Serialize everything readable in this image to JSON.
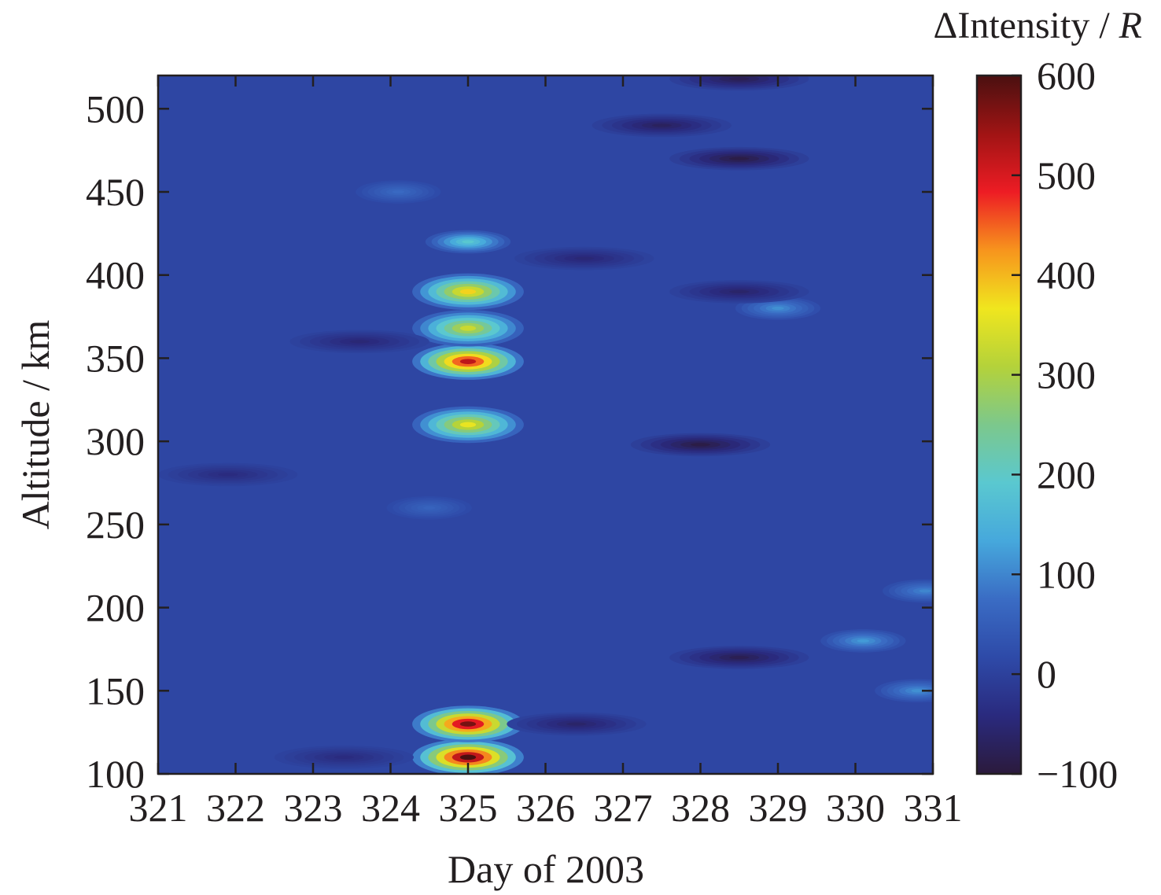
{
  "chart_data": {
    "type": "heatmap",
    "title": "",
    "xlabel": "Day of 2003",
    "ylabel": "Altitude / km",
    "colorbar_label": "ΔIntensity / ",
    "colorbar_label_italic": "R",
    "xlim": [
      321,
      331
    ],
    "ylim": [
      100,
      520
    ],
    "clim": [
      -100,
      600
    ],
    "x_ticks": [
      321,
      322,
      323,
      324,
      325,
      326,
      327,
      328,
      329,
      330,
      331
    ],
    "x_tick_labels": [
      "321",
      "322",
      "323",
      "324",
      "325",
      "326",
      "327",
      "328",
      "329",
      "330",
      "331"
    ],
    "y_ticks": [
      100,
      150,
      200,
      250,
      300,
      350,
      400,
      450,
      500
    ],
    "y_tick_labels": [
      "100",
      "150",
      "200",
      "250",
      "300",
      "350",
      "400",
      "450",
      "500"
    ],
    "colorbar_ticks": [
      -100,
      0,
      100,
      200,
      300,
      400,
      500,
      600
    ],
    "colorbar_tick_labels": [
      "−100",
      "0",
      "100",
      "200",
      "300",
      "400",
      "500",
      "600"
    ],
    "colormap": [
      "#2b1a3c",
      "#2a2a7e",
      "#2e4aa8",
      "#3a6cc4",
      "#46a8dc",
      "#5ac8d0",
      "#7cc88c",
      "#b4d23a",
      "#f0e61e",
      "#f7941d",
      "#ed1c24",
      "#a01414",
      "#4a1010"
    ],
    "background_value": 10,
    "features": [
      {
        "day": 325.0,
        "altitude": 110,
        "value": 600
      },
      {
        "day": 325.0,
        "altitude": 130,
        "value": 570
      },
      {
        "day": 325.0,
        "altitude": 310,
        "value": 360
      },
      {
        "day": 325.0,
        "altitude": 348,
        "value": 520
      },
      {
        "day": 325.0,
        "altitude": 368,
        "value": 330
      },
      {
        "day": 325.0,
        "altitude": 390,
        "value": 380
      },
      {
        "day": 325.0,
        "altitude": 420,
        "value": 190
      },
      {
        "day": 324.1,
        "altitude": 450,
        "value": 70
      },
      {
        "day": 324.5,
        "altitude": 260,
        "value": 60
      },
      {
        "day": 329.0,
        "altitude": 380,
        "value": 110
      },
      {
        "day": 330.1,
        "altitude": 180,
        "value": 120
      },
      {
        "day": 330.8,
        "altitude": 150,
        "value": 110
      },
      {
        "day": 330.9,
        "altitude": 210,
        "value": 100
      },
      {
        "day": 328.5,
        "altitude": 470,
        "value": -90
      },
      {
        "day": 328.0,
        "altitude": 298,
        "value": -90
      },
      {
        "day": 328.5,
        "altitude": 170,
        "value": -80
      },
      {
        "day": 328.5,
        "altitude": 518,
        "value": -80
      },
      {
        "day": 327.5,
        "altitude": 490,
        "value": -70
      },
      {
        "day": 328.5,
        "altitude": 390,
        "value": -60
      },
      {
        "day": 326.5,
        "altitude": 410,
        "value": -50
      },
      {
        "day": 326.4,
        "altitude": 130,
        "value": -60
      },
      {
        "day": 323.6,
        "altitude": 360,
        "value": -50
      },
      {
        "day": 321.9,
        "altitude": 280,
        "value": -40
      },
      {
        "day": 323.4,
        "altitude": 110,
        "value": -40
      }
    ]
  }
}
